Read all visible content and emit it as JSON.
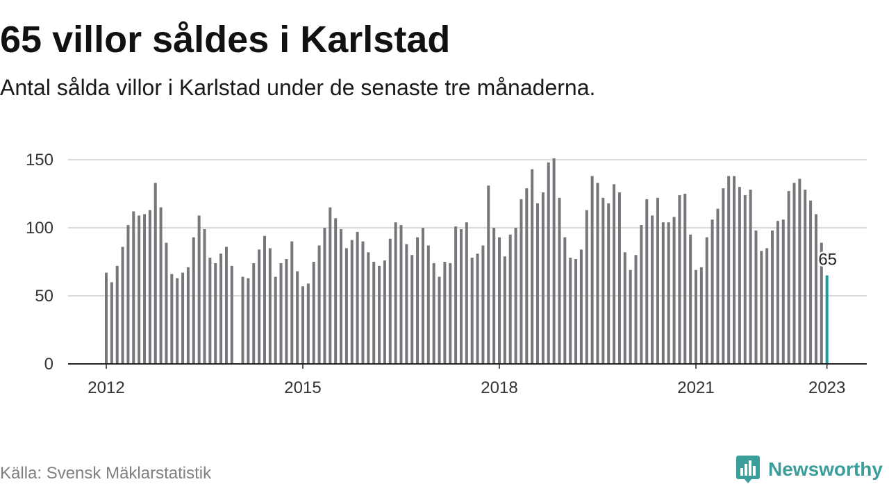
{
  "chart_data": {
    "type": "bar",
    "title": "65 villor såldes i Karlstad",
    "subtitle": "Antal sålda villor i Karlstad under de senaste tre månaderna.",
    "ylim": [
      0,
      150
    ],
    "yticks": [
      0,
      50,
      100,
      150
    ],
    "xticks": [
      "2012",
      "2015",
      "2018",
      "2021",
      "2023"
    ],
    "grid": true,
    "categories": [
      "2012-01",
      "2012-02",
      "2012-03",
      "2012-04",
      "2012-05",
      "2012-06",
      "2012-07",
      "2012-08",
      "2012-09",
      "2012-10",
      "2012-11",
      "2012-12",
      "2013-01",
      "2013-02",
      "2013-03",
      "2013-04",
      "2013-05",
      "2013-06",
      "2013-07",
      "2013-08",
      "2013-09",
      "2013-10",
      "2013-11",
      "2013-12",
      "2014-01",
      "2014-02",
      "2014-03",
      "2014-04",
      "2014-05",
      "2014-06",
      "2014-07",
      "2014-08",
      "2014-09",
      "2014-10",
      "2014-11",
      "2014-12",
      "2015-01",
      "2015-02",
      "2015-03",
      "2015-04",
      "2015-05",
      "2015-06",
      "2015-07",
      "2015-08",
      "2015-09",
      "2015-10",
      "2015-11",
      "2015-12",
      "2016-01",
      "2016-02",
      "2016-03",
      "2016-04",
      "2016-05",
      "2016-06",
      "2016-07",
      "2016-08",
      "2016-09",
      "2016-10",
      "2016-11",
      "2016-12",
      "2017-01",
      "2017-02",
      "2017-03",
      "2017-04",
      "2017-05",
      "2017-06",
      "2017-07",
      "2017-08",
      "2017-09",
      "2017-10",
      "2017-11",
      "2017-12",
      "2018-01",
      "2018-02",
      "2018-03",
      "2018-04",
      "2018-05",
      "2018-06",
      "2018-07",
      "2018-08",
      "2018-09",
      "2018-10",
      "2018-11",
      "2018-12",
      "2019-01",
      "2019-02",
      "2019-03",
      "2019-04",
      "2019-05",
      "2019-06",
      "2019-07",
      "2019-08",
      "2019-09",
      "2019-10",
      "2019-11",
      "2019-12",
      "2020-01",
      "2020-02",
      "2020-03",
      "2020-04",
      "2020-05",
      "2020-06",
      "2020-07",
      "2020-08",
      "2020-09",
      "2020-10",
      "2020-11",
      "2020-12",
      "2021-01",
      "2021-02",
      "2021-03",
      "2021-04",
      "2021-05",
      "2021-06",
      "2021-07",
      "2021-08",
      "2021-09",
      "2021-10",
      "2021-11",
      "2021-12",
      "2022-01",
      "2022-02",
      "2022-03",
      "2022-04",
      "2022-05",
      "2022-06",
      "2022-07",
      "2022-08",
      "2022-09",
      "2022-10",
      "2022-11",
      "2022-12",
      "2023-01"
    ],
    "values": [
      67,
      60,
      72,
      86,
      102,
      112,
      109,
      110,
      113,
      133,
      115,
      89,
      66,
      63,
      67,
      71,
      93,
      109,
      99,
      78,
      74,
      81,
      86,
      72,
      null,
      64,
      63,
      74,
      84,
      94,
      85,
      64,
      74,
      77,
      90,
      68,
      57,
      59,
      75,
      87,
      100,
      115,
      107,
      99,
      85,
      91,
      97,
      90,
      82,
      75,
      72,
      76,
      92,
      104,
      102,
      88,
      80,
      93,
      100,
      87,
      74,
      64,
      75,
      74,
      101,
      99,
      104,
      78,
      81,
      87,
      131,
      100,
      93,
      79,
      95,
      100,
      121,
      129,
      143,
      118,
      126,
      148,
      151,
      122,
      93,
      78,
      77,
      84,
      113,
      138,
      133,
      122,
      118,
      132,
      126,
      82,
      69,
      80,
      102,
      121,
      109,
      122,
      104,
      104,
      108,
      124,
      125,
      95,
      69,
      71,
      93,
      106,
      114,
      129,
      138,
      138,
      130,
      124,
      128,
      98,
      83,
      85,
      98,
      105,
      106,
      127,
      133,
      136,
      128,
      120,
      110,
      89,
      65
    ],
    "highlight": {
      "category": "2023-01",
      "value": 65,
      "label": "65"
    },
    "source": "Källa: Svensk Mäklarstatistik"
  },
  "colors": {
    "bar": "#77777b",
    "highlight": "#1b9c99",
    "gridline": "#d9d9d9",
    "axis": "#222222",
    "brand": "#3b9e9b"
  },
  "brand": {
    "name": "Newsworthy",
    "icon": "newsworthy-logo-icon"
  }
}
